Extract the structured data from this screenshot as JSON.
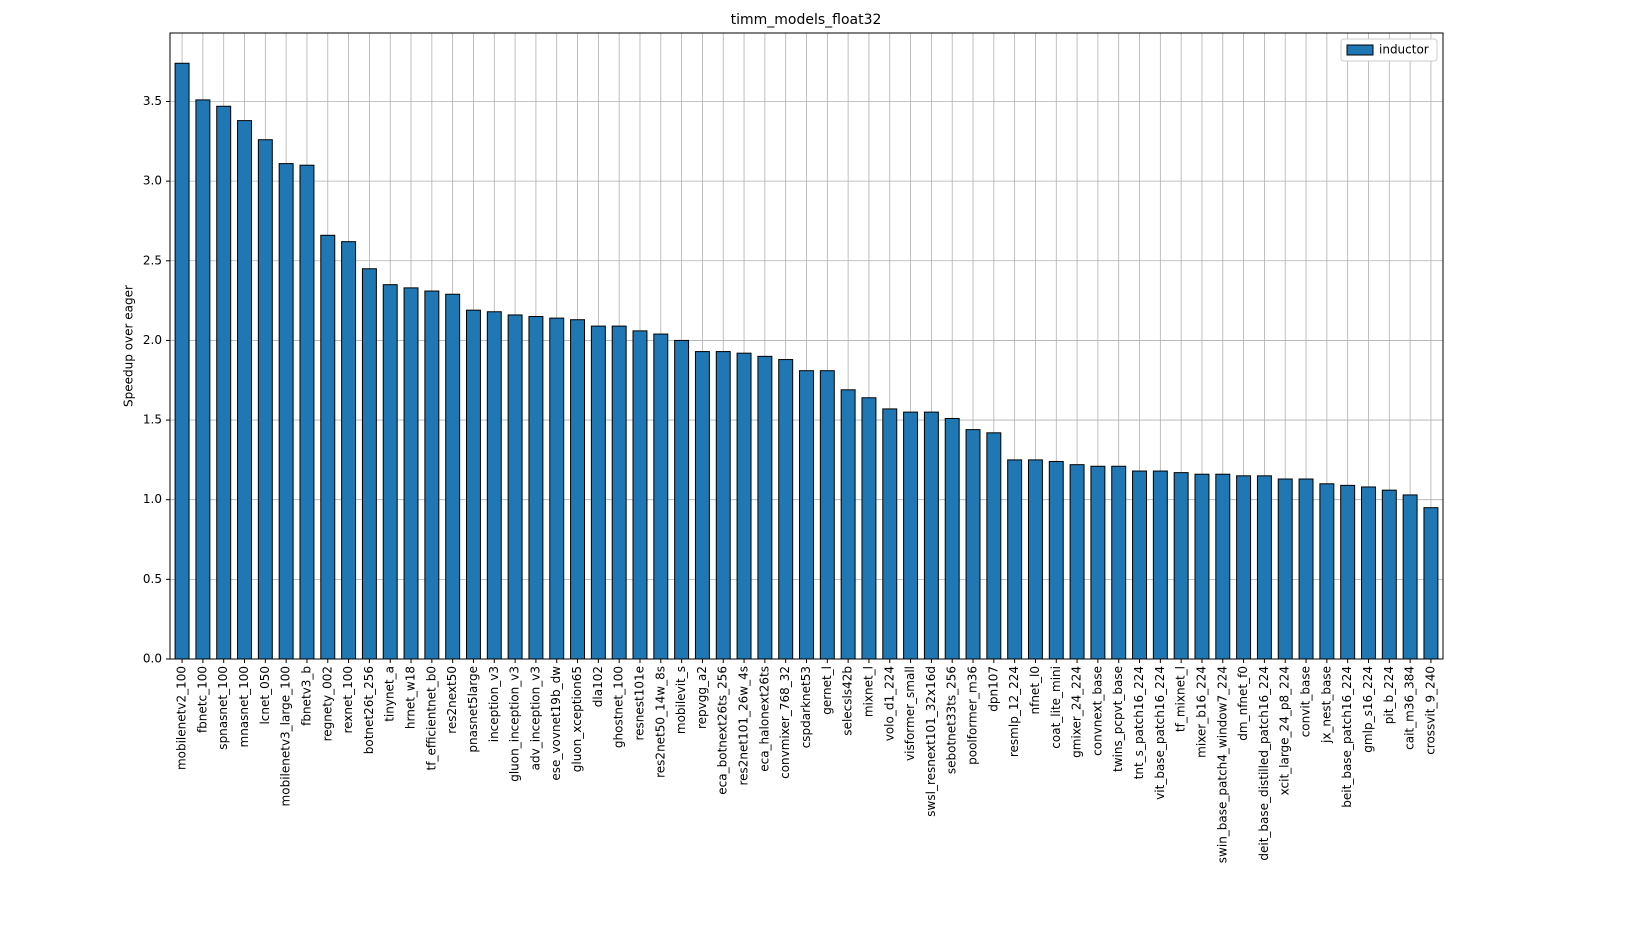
{
  "chart_data": {
    "type": "bar",
    "title": "timm_models_float32",
    "ylabel": "Speedup over eager",
    "categories": [
      "mobilenetv2_100",
      "fbnetc_100",
      "spnasnet_100",
      "mnasnet_100",
      "lcnet_050",
      "mobilenetv3_large_100",
      "fbnetv3_b",
      "regnety_002",
      "rexnet_100",
      "botnet26t_256",
      "tinynet_a",
      "hrnet_w18",
      "tf_efficientnet_b0",
      "res2next50",
      "pnasnet5large",
      "inception_v3",
      "gluon_inception_v3",
      "adv_inception_v3",
      "ese_vovnet19b_dw",
      "gluon_xception65",
      "dla102",
      "ghostnet_100",
      "resnest101e",
      "res2net50_14w_8s",
      "mobilevit_s",
      "repvgg_a2",
      "eca_botnext26ts_256",
      "res2net101_26w_4s",
      "eca_halonext26ts",
      "convmixer_768_32",
      "cspdarknet53",
      "gernet_l",
      "selecsls42b",
      "mixnet_l",
      "volo_d1_224",
      "visformer_small",
      "swsl_resnext101_32x16d",
      "sebotnet33ts_256",
      "poolformer_m36",
      "dpn107",
      "resmlp_12_224",
      "nfnet_l0",
      "coat_lite_mini",
      "gmixer_24_224",
      "convnext_base",
      "twins_pcpvt_base",
      "tnt_s_patch16_224",
      "vit_base_patch16_224",
      "tf_mixnet_l",
      "mixer_b16_224",
      "swin_base_patch4_window7_224",
      "dm_nfnet_f0",
      "deit_base_distilled_patch16_224",
      "xcit_large_24_p8_224",
      "convit_base",
      "jx_nest_base",
      "beit_base_patch16_224",
      "gmlp_s16_224",
      "pit_b_224",
      "cait_m36_384",
      "crossvit_9_240"
    ],
    "series": [
      {
        "name": "inductor",
        "color": "#1f77b4",
        "values": [
          3.74,
          3.51,
          3.47,
          3.38,
          3.26,
          3.11,
          3.1,
          2.66,
          2.62,
          2.45,
          2.35,
          2.33,
          2.31,
          2.29,
          2.19,
          2.18,
          2.16,
          2.15,
          2.14,
          2.13,
          2.09,
          2.09,
          2.06,
          2.04,
          2.0,
          1.93,
          1.93,
          1.92,
          1.9,
          1.88,
          1.81,
          1.81,
          1.69,
          1.64,
          1.57,
          1.55,
          1.55,
          1.51,
          1.44,
          1.42,
          1.25,
          1.25,
          1.24,
          1.22,
          1.21,
          1.21,
          1.18,
          1.18,
          1.17,
          1.16,
          1.16,
          1.15,
          1.15,
          1.13,
          1.13,
          1.1,
          1.09,
          1.08,
          1.06,
          1.03,
          0.95
        ]
      }
    ],
    "ylim": [
      0,
      3.93
    ],
    "yticks": [
      {
        "value": 0,
        "label": "0.0"
      },
      0.5,
      {
        "value": 1,
        "label": "1.0"
      },
      1.5,
      {
        "value": 2,
        "label": "2.0"
      },
      2.5,
      {
        "value": 3,
        "label": "3.0"
      },
      3.5
    ],
    "grid": true,
    "legend": "upper right"
  }
}
